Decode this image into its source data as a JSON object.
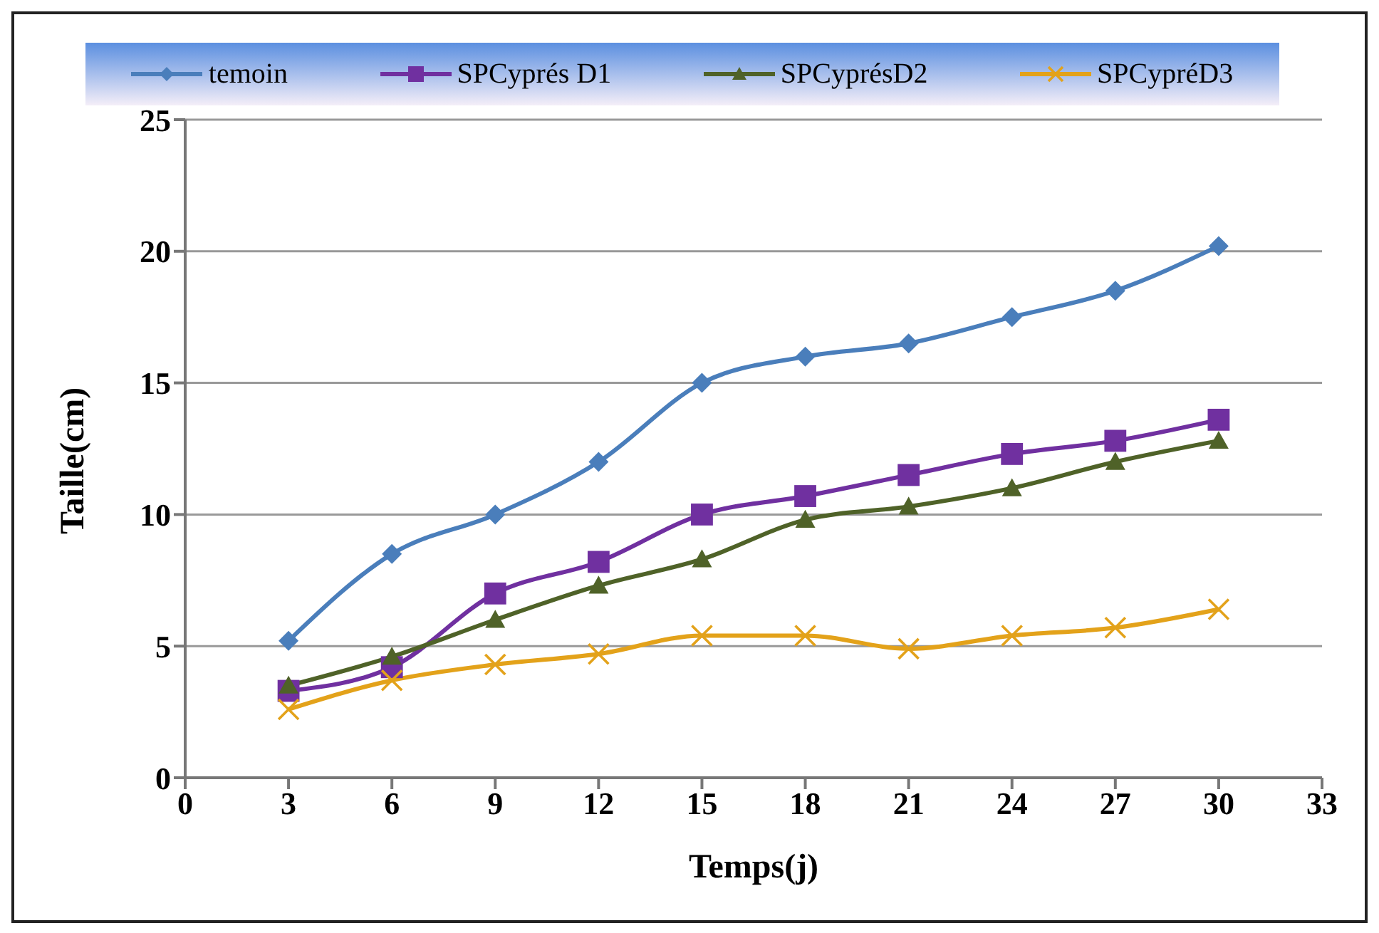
{
  "chart_data": {
    "type": "line",
    "xlabel": "Temps(j)",
    "ylabel": "Taille(cm)",
    "x": [
      3,
      6,
      9,
      12,
      15,
      18,
      21,
      24,
      27,
      30
    ],
    "xlim": [
      0,
      33
    ],
    "xticks": [
      0,
      3,
      6,
      9,
      12,
      15,
      18,
      21,
      24,
      27,
      30,
      33
    ],
    "ylim": [
      0,
      25
    ],
    "yticks": [
      0,
      5,
      10,
      15,
      20,
      25
    ],
    "grid": "y",
    "legend": "top",
    "series": [
      {
        "name": "temoin",
        "color": "#4a7ebb",
        "marker": "diamond",
        "values": [
          5.2,
          8.5,
          10,
          12,
          15,
          16,
          16.5,
          17.5,
          18.5,
          20.2
        ]
      },
      {
        "name": "SPCyprés D1",
        "color": "#7030a0",
        "marker": "square",
        "values": [
          3.3,
          4.2,
          7,
          8.2,
          10,
          10.7,
          11.5,
          12.3,
          12.8,
          13.6
        ]
      },
      {
        "name": "SPCyprésD2",
        "color": "#4f6228",
        "marker": "triangle",
        "values": [
          3.5,
          4.6,
          6,
          7.3,
          8.3,
          9.8,
          10.3,
          11,
          12,
          12.8
        ]
      },
      {
        "name": "SPCypréD3",
        "color": "#e3a21a",
        "marker": "cross",
        "values": [
          2.6,
          3.7,
          4.3,
          4.7,
          5.4,
          5.4,
          4.9,
          5.4,
          5.7,
          6.4
        ]
      }
    ]
  }
}
